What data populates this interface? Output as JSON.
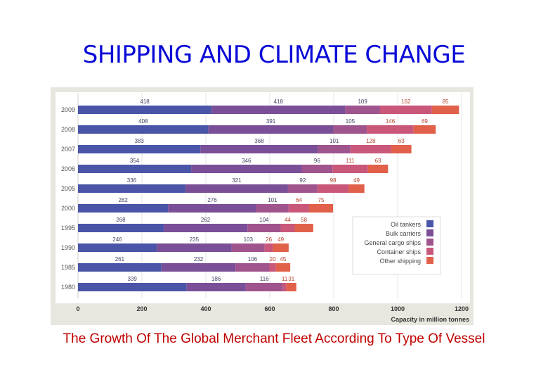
{
  "slide_title": "SHIPPING AND CLIMATE CHANGE",
  "caption": "The Growth Of The Global Merchant Fleet According To Type Of Vessel",
  "chart_data": {
    "type": "bar",
    "orientation": "horizontal",
    "stacked": true,
    "title": "",
    "xlabel": "Capacity in million tonnes",
    "ylabel": "",
    "xlim": [
      0,
      1200
    ],
    "xticks": [
      0,
      200,
      400,
      600,
      800,
      1000,
      1200
    ],
    "categories": [
      "2009",
      "2008",
      "2007",
      "2006",
      "2005",
      "2000",
      "1995",
      "1990",
      "1985",
      "1980"
    ],
    "series": [
      {
        "name": "Oil tankers",
        "color": "#4a55a8",
        "values": [
          418,
          408,
          383,
          354,
          336,
          282,
          268,
          246,
          261,
          339
        ]
      },
      {
        "name": "Bulk carriers",
        "color": "#7a4f98",
        "values": [
          418,
          391,
          368,
          346,
          321,
          276,
          262,
          235,
          232,
          186
        ]
      },
      {
        "name": "General cargo ships",
        "color": "#a0548e",
        "values": [
          109,
          105,
          101,
          96,
          92,
          101,
          104,
          103,
          106,
          116
        ]
      },
      {
        "name": "Container ships",
        "color": "#c9577a",
        "values": [
          162,
          146,
          128,
          111,
          98,
          64,
          44,
          26,
          20,
          11
        ]
      },
      {
        "name": "Other shipping",
        "color": "#e0604a",
        "values": [
          85,
          69,
          63,
          63,
          49,
          75,
          58,
          49,
          45,
          31
        ]
      }
    ],
    "legend_position": "bottom-right",
    "grid": true
  }
}
